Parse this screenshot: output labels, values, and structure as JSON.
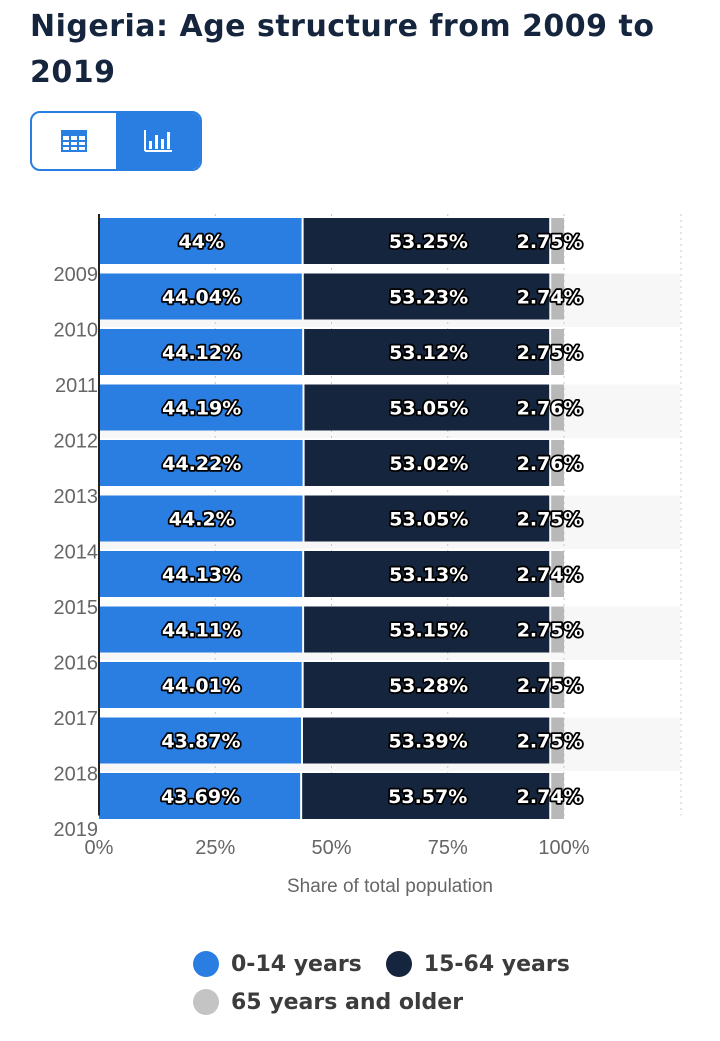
{
  "page": {
    "title": "Nigeria: Age structure from 2009 to 2019"
  },
  "view_toggle": {
    "options": [
      {
        "name": "table-view",
        "icon": "table-icon",
        "active": false
      },
      {
        "name": "chart-view",
        "icon": "bar-chart-icon",
        "active": true
      }
    ],
    "accent_color": "#2a7de1"
  },
  "chart_data": {
    "type": "bar",
    "orientation": "horizontal",
    "stacked": true,
    "xlabel": "Share of total population",
    "xlim": [
      0,
      100
    ],
    "x_ticks": [
      "0%",
      "25%",
      "50%",
      "75%",
      "100%"
    ],
    "categories": [
      "2009",
      "2010",
      "2011",
      "2012",
      "2013",
      "2014",
      "2015",
      "2016",
      "2017",
      "2018",
      "2019"
    ],
    "series": [
      {
        "name": "0-14 years",
        "color": "#2a7de1",
        "values": [
          44,
          44.04,
          44.12,
          44.19,
          44.22,
          44.2,
          44.13,
          44.11,
          44.01,
          43.87,
          43.69
        ],
        "labels": [
          "44%",
          "44.04%",
          "44.12%",
          "44.19%",
          "44.22%",
          "44.2%",
          "44.13%",
          "44.11%",
          "44.01%",
          "43.87%",
          "43.69%"
        ]
      },
      {
        "name": "15-64 years",
        "color": "#15253d",
        "values": [
          53.25,
          53.23,
          53.12,
          53.05,
          53.02,
          53.05,
          53.13,
          53.15,
          53.28,
          53.39,
          53.57
        ],
        "labels": [
          "53.25%",
          "53.23%",
          "53.12%",
          "53.05%",
          "53.02%",
          "53.05%",
          "53.13%",
          "53.15%",
          "53.28%",
          "53.39%",
          "53.57%"
        ]
      },
      {
        "name": "65 years and older",
        "color": "#b8b8b8",
        "values": [
          2.75,
          2.74,
          2.75,
          2.76,
          2.76,
          2.75,
          2.74,
          2.75,
          2.75,
          2.75,
          2.74
        ],
        "labels": [
          "2.75%",
          "2.74%",
          "2.75%",
          "2.76%",
          "2.76%",
          "2.75%",
          "2.74%",
          "2.75%",
          "2.75%",
          "2.75%",
          "2.74%"
        ]
      }
    ],
    "grid": true,
    "legend_position": "bottom"
  }
}
